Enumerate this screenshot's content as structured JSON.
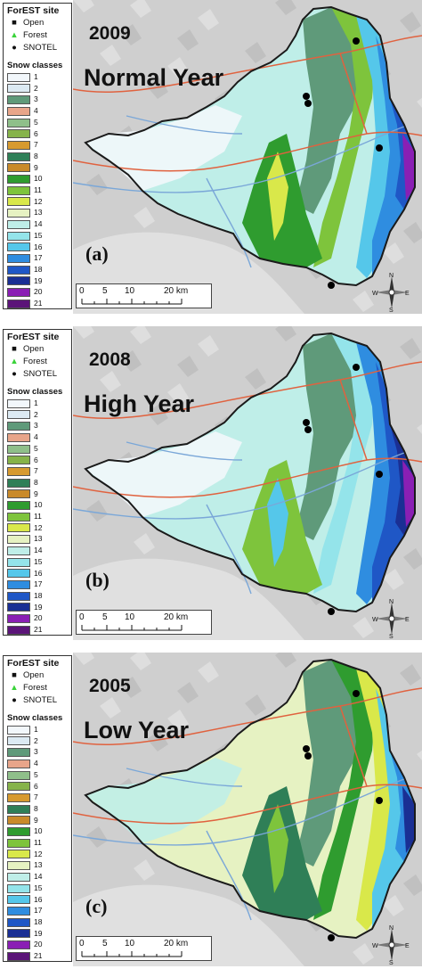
{
  "legend": {
    "site_title": "ForEST site",
    "sites": [
      {
        "label": "Open",
        "symbol": "square",
        "color": "#6d6d6d"
      },
      {
        "label": "Forest",
        "symbol": "triangle",
        "color": "#3ad33a"
      },
      {
        "label": "SNOTEL",
        "symbol": "circle",
        "color": "#000000"
      }
    ],
    "snow_title": "Snow classes",
    "classes": [
      {
        "label": "1",
        "color": "#f2f7fb"
      },
      {
        "label": "2",
        "color": "#dceaf3"
      },
      {
        "label": "3",
        "color": "#5f9a7a"
      },
      {
        "label": "4",
        "color": "#e8a58a"
      },
      {
        "label": "5",
        "color": "#8fbf8a"
      },
      {
        "label": "6",
        "color": "#86b34a"
      },
      {
        "label": "7",
        "color": "#d79a2f"
      },
      {
        "label": "8",
        "color": "#2f7f57"
      },
      {
        "label": "9",
        "color": "#c98a2a"
      },
      {
        "label": "10",
        "color": "#2f9c2f"
      },
      {
        "label": "11",
        "color": "#7ec43c"
      },
      {
        "label": "12",
        "color": "#d9e84a"
      },
      {
        "label": "13",
        "color": "#e6f2c2"
      },
      {
        "label": "14",
        "color": "#bfeee8"
      },
      {
        "label": "15",
        "color": "#94e4ea"
      },
      {
        "label": "16",
        "color": "#55c7ea"
      },
      {
        "label": "17",
        "color": "#2f8de0"
      },
      {
        "label": "18",
        "color": "#1f57c6"
      },
      {
        "label": "19",
        "color": "#1a2f94"
      },
      {
        "label": "20",
        "color": "#8a1fb4"
      },
      {
        "label": "21",
        "color": "#5b1478"
      }
    ]
  },
  "scale_bar": {
    "ticks": [
      "0",
      "5",
      "10",
      "20 km"
    ]
  },
  "compass": {
    "n": "N",
    "s": "S",
    "e": "E",
    "w": "W"
  },
  "panels": [
    {
      "id": "a",
      "year": "2009",
      "year_type": "Normal Year",
      "panel_label": "(a)",
      "regime": "normal"
    },
    {
      "id": "b",
      "year": "2008",
      "year_type": "High Year",
      "panel_label": "(b)",
      "regime": "high"
    },
    {
      "id": "c",
      "year": "2005",
      "year_type": "Low Year",
      "panel_label": "(c)",
      "regime": "low"
    }
  ]
}
